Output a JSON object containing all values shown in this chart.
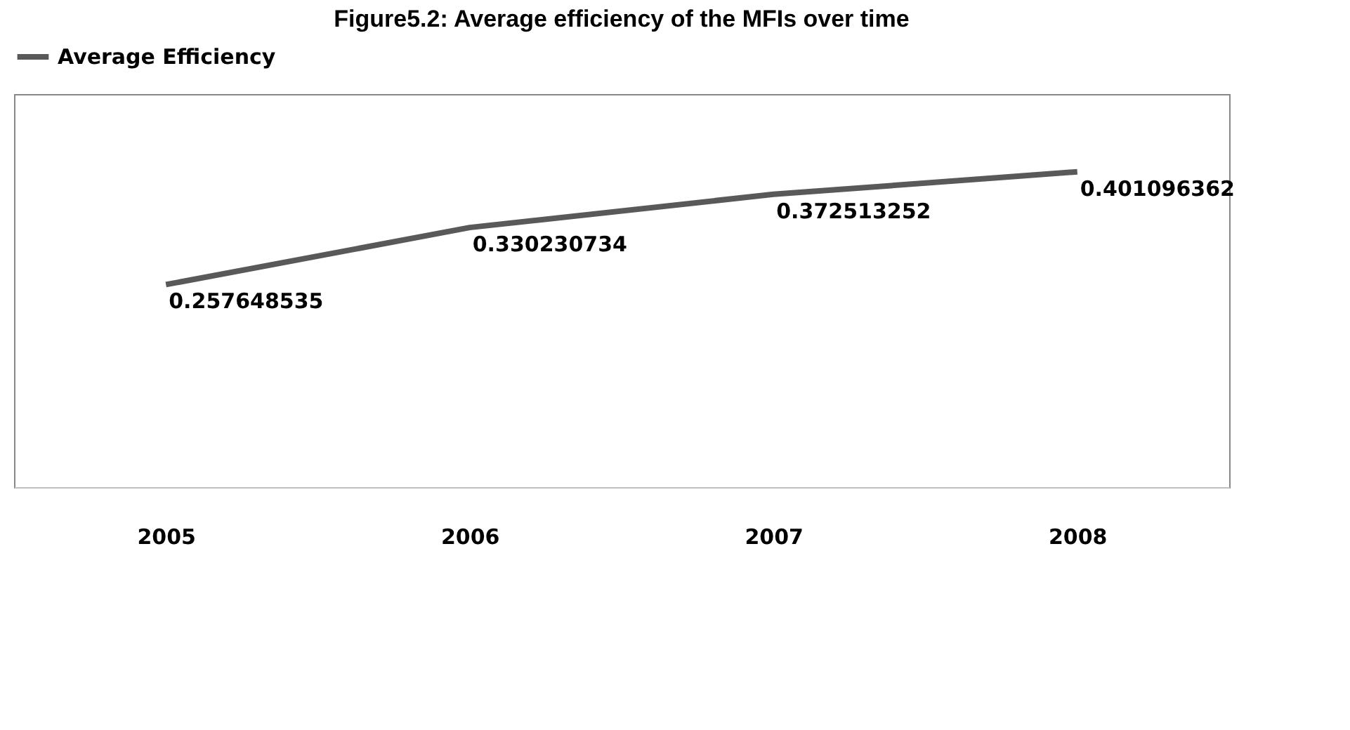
{
  "chart_data": {
    "type": "line",
    "title": "Figure5.2: Average efficiency of the MFIs over time",
    "categories": [
      "2005",
      "2006",
      "2007",
      "2008"
    ],
    "series": [
      {
        "name": "Average Efficiency",
        "color": "#595959",
        "values": [
          0.257648535,
          0.330230734,
          0.372513252,
          0.401096362
        ]
      }
    ],
    "ylim": [
      0,
      0.5
    ],
    "data_labels": true,
    "legend": "top",
    "grid": false,
    "tick_labels": "x",
    "marker": "none",
    "line_style": "solid"
  }
}
